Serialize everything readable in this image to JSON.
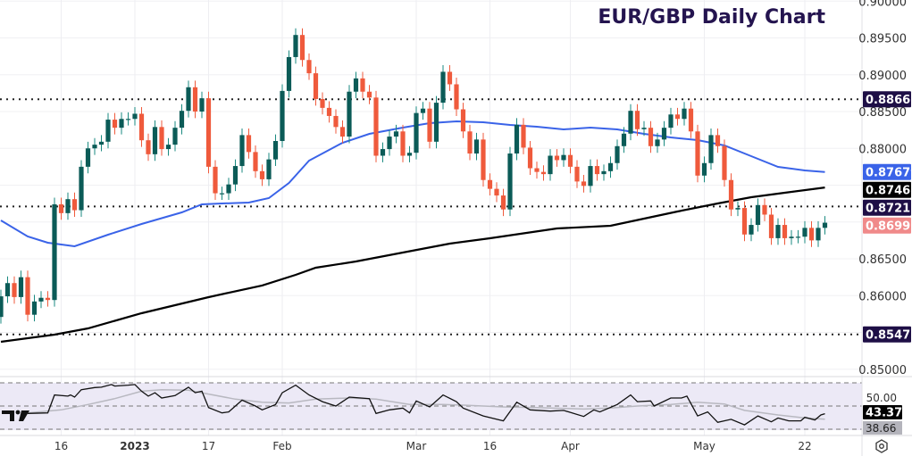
{
  "chart_data": {
    "type": "candlestick",
    "title": "EUR/GBP Daily Chart",
    "colors": {
      "up": "#0b5b57",
      "down": "#ef5a3c",
      "ma50": "#3a63e8",
      "ma200": "#000000",
      "level": "#1e0f46",
      "last": "#f08a8a",
      "rsi": "#111111",
      "rsi_ma": "#b8b8c0",
      "rsi_bg": "#ece9f6",
      "title": "#24144f"
    },
    "ylim": [
      0.8485,
      0.9003
    ],
    "y_ticks": [
      "0.90000",
      "0.89500",
      "0.89000",
      "0.88500",
      "0.88000",
      "0.86500",
      "0.86000",
      "0.85000"
    ],
    "y_tick_values": [
      0.9,
      0.895,
      0.89,
      0.885,
      0.88,
      0.865,
      0.86,
      0.85
    ],
    "x_ticks": [
      {
        "label": "16",
        "index": 9
      },
      {
        "label": "2023",
        "index": 20
      },
      {
        "label": "17",
        "index": 31
      },
      {
        "label": "Feb",
        "index": 42
      },
      {
        "label": "Mar",
        "index": 62
      },
      {
        "label": "16",
        "index": 73
      },
      {
        "label": "Apr",
        "index": 85
      },
      {
        "label": "May",
        "index": 105
      },
      {
        "label": "22",
        "index": 120
      }
    ],
    "first_open": 0.8571,
    "closes": [
      0.8599,
      0.8617,
      0.8598,
      0.8625,
      0.8574,
      0.8592,
      0.8597,
      0.8594,
      0.8724,
      0.8712,
      0.8731,
      0.8716,
      0.8775,
      0.88,
      0.8805,
      0.8809,
      0.8839,
      0.8828,
      0.884,
      0.884,
      0.8847,
      0.8811,
      0.8792,
      0.8829,
      0.8799,
      0.8805,
      0.8828,
      0.8851,
      0.8883,
      0.885,
      0.8868,
      0.8775,
      0.8739,
      0.8739,
      0.8751,
      0.8776,
      0.8818,
      0.8795,
      0.8769,
      0.8758,
      0.8785,
      0.881,
      0.8878,
      0.8924,
      0.8954,
      0.892,
      0.8902,
      0.8867,
      0.8855,
      0.8844,
      0.8829,
      0.8816,
      0.8877,
      0.8895,
      0.8877,
      0.8869,
      0.879,
      0.8799,
      0.8816,
      0.8823,
      0.879,
      0.8794,
      0.8848,
      0.8854,
      0.8809,
      0.8862,
      0.8904,
      0.8887,
      0.8853,
      0.8823,
      0.8793,
      0.8812,
      0.8757,
      0.8745,
      0.8736,
      0.8717,
      0.8793,
      0.8832,
      0.8801,
      0.8773,
      0.8768,
      0.8765,
      0.879,
      0.8784,
      0.8791,
      0.8775,
      0.8755,
      0.8749,
      0.8776,
      0.8765,
      0.8769,
      0.878,
      0.8803,
      0.882,
      0.8851,
      0.8826,
      0.8828,
      0.8803,
      0.8812,
      0.8828,
      0.8846,
      0.884,
      0.8854,
      0.8823,
      0.8763,
      0.878,
      0.8818,
      0.8803,
      0.8757,
      0.8717,
      0.8719,
      0.8683,
      0.8696,
      0.8723,
      0.871,
      0.8678,
      0.8696,
      0.8678,
      0.868,
      0.868,
      0.8692,
      0.8675,
      0.8692,
      0.8699
    ],
    "ma50": [
      [
        0,
        0.87021
      ],
      [
        4,
        0.86803
      ],
      [
        7,
        0.86718
      ],
      [
        11,
        0.8667
      ],
      [
        16,
        0.86827
      ],
      [
        21,
        0.86973
      ],
      [
        27,
        0.8713
      ],
      [
        30,
        0.8724
      ],
      [
        33,
        0.87252
      ],
      [
        37,
        0.87264
      ],
      [
        40,
        0.87324
      ],
      [
        43,
        0.8753
      ],
      [
        46,
        0.87833
      ],
      [
        51,
        0.88076
      ],
      [
        55,
        0.88197
      ],
      [
        60,
        0.88282
      ],
      [
        64,
        0.88342
      ],
      [
        68,
        0.88367
      ],
      [
        72,
        0.88355
      ],
      [
        76,
        0.88318
      ],
      [
        80,
        0.88294
      ],
      [
        84,
        0.88258
      ],
      [
        88,
        0.88282
      ],
      [
        92,
        0.88258
      ],
      [
        96,
        0.88197
      ],
      [
        100,
        0.88149
      ],
      [
        104,
        0.88112
      ],
      [
        108,
        0.8804
      ],
      [
        112,
        0.87894
      ],
      [
        116,
        0.87749
      ],
      [
        120,
        0.877
      ],
      [
        123,
        0.87679
      ]
    ],
    "ma200": [
      [
        0,
        0.85373
      ],
      [
        8,
        0.8547
      ],
      [
        13,
        0.85555
      ],
      [
        21,
        0.85761
      ],
      [
        31,
        0.85979
      ],
      [
        39,
        0.86137
      ],
      [
        44,
        0.86282
      ],
      [
        47,
        0.86379
      ],
      [
        53,
        0.86464
      ],
      [
        60,
        0.86585
      ],
      [
        67,
        0.86706
      ],
      [
        73,
        0.86779
      ],
      [
        83,
        0.86912
      ],
      [
        91,
        0.86949
      ],
      [
        96,
        0.87046
      ],
      [
        101,
        0.87143
      ],
      [
        107,
        0.87252
      ],
      [
        112,
        0.87336
      ],
      [
        117,
        0.87397
      ],
      [
        123,
        0.87468
      ]
    ],
    "levels": [
      {
        "value": 0.88667,
        "label": "0.88667"
      },
      {
        "value": 0.87211,
        "label": "0.87211"
      },
      {
        "value": 0.85473,
        "label": "0.85473"
      }
    ],
    "price_labels": {
      "ma50": "0.87679",
      "ma200": "0.87468",
      "last": "0.86992"
    },
    "price_label_values": {
      "ma50": 0.87679,
      "ma200": 0.87468,
      "last": 0.86992
    },
    "rsi": {
      "ylim": [
        30,
        70
      ],
      "mid_label": "50.00",
      "value_label": "43.37",
      "ma_label": "38.66",
      "value": 43.37,
      "ma_value": 38.66,
      "series": [
        [
          4,
          43.6
        ],
        [
          7,
          44.1
        ],
        [
          8,
          59.5
        ],
        [
          10,
          58.5
        ],
        [
          10.4,
          59.5
        ],
        [
          11,
          57.7
        ],
        [
          12,
          64.1
        ],
        [
          14,
          65.9
        ],
        [
          15,
          66.2
        ],
        [
          16.5,
          68.5
        ],
        [
          17,
          67.2
        ],
        [
          19,
          68.0
        ],
        [
          20,
          68.5
        ],
        [
          21,
          62.8
        ],
        [
          22,
          58.5
        ],
        [
          23,
          61.5
        ],
        [
          24,
          56.9
        ],
        [
          26,
          59.0
        ],
        [
          28,
          66.2
        ],
        [
          29,
          61.5
        ],
        [
          30,
          62.8
        ],
        [
          31,
          48.7
        ],
        [
          33,
          44.1
        ],
        [
          34,
          44.9
        ],
        [
          36,
          55.1
        ],
        [
          38,
          50.0
        ],
        [
          39,
          46.7
        ],
        [
          41,
          51.3
        ],
        [
          42,
          61.5
        ],
        [
          44,
          68.0
        ],
        [
          46,
          59.5
        ],
        [
          48,
          53.8
        ],
        [
          50,
          50.0
        ],
        [
          52,
          57.7
        ],
        [
          55,
          56.4
        ],
        [
          56,
          43.6
        ],
        [
          58,
          46.7
        ],
        [
          60,
          48.2
        ],
        [
          61,
          44.1
        ],
        [
          62,
          54.4
        ],
        [
          64,
          49.2
        ],
        [
          66,
          59.5
        ],
        [
          68,
          53.8
        ],
        [
          69,
          48.2
        ],
        [
          72,
          41.5
        ],
        [
          75,
          37.2
        ],
        [
          77,
          53.3
        ],
        [
          79,
          46.7
        ],
        [
          82,
          45.6
        ],
        [
          84,
          46.2
        ],
        [
          87,
          41.0
        ],
        [
          88.5,
          46.7
        ],
        [
          89.4,
          44.9
        ],
        [
          92,
          51.3
        ],
        [
          94,
          59.5
        ],
        [
          95,
          53.8
        ],
        [
          97,
          54.4
        ],
        [
          97.5,
          50.0
        ],
        [
          100,
          56.9
        ],
        [
          101.6,
          56.9
        ],
        [
          102.4,
          58.5
        ],
        [
          104,
          41.5
        ],
        [
          105.5,
          44.9
        ],
        [
          107,
          35.9
        ],
        [
          109,
          38.5
        ],
        [
          111,
          33.8
        ],
        [
          113,
          41.5
        ],
        [
          115,
          36.4
        ],
        [
          116,
          39.7
        ],
        [
          117.6,
          37.2
        ],
        [
          119.4,
          37.2
        ],
        [
          120,
          40.3
        ],
        [
          121.5,
          38.0
        ],
        [
          122.4,
          42.3
        ],
        [
          123,
          43.4
        ]
      ],
      "ma_series": [
        [
          4,
          44.1
        ],
        [
          9,
          46.7
        ],
        [
          13,
          51.3
        ],
        [
          17,
          56.4
        ],
        [
          21,
          62.8
        ],
        [
          24,
          64.1
        ],
        [
          28,
          63.6
        ],
        [
          31,
          60.3
        ],
        [
          35,
          55.9
        ],
        [
          39,
          53.3
        ],
        [
          43,
          52.6
        ],
        [
          47,
          55.9
        ],
        [
          52,
          56.9
        ],
        [
          56,
          55.9
        ],
        [
          61,
          51.3
        ],
        [
          66,
          51.3
        ],
        [
          69,
          50.8
        ],
        [
          75,
          49.2
        ],
        [
          80,
          48.7
        ],
        [
          87,
          47.4
        ],
        [
          91,
          48.2
        ],
        [
          95,
          50.0
        ],
        [
          100,
          51.3
        ],
        [
          104,
          53.3
        ],
        [
          108,
          51.8
        ],
        [
          111,
          46.2
        ],
        [
          116,
          42.3
        ],
        [
          120,
          39.7
        ],
        [
          123,
          38.7
        ]
      ]
    }
  }
}
